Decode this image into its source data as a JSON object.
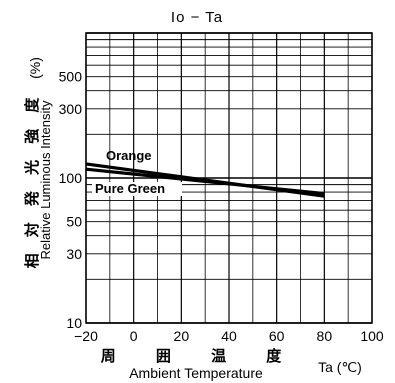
{
  "chart_data": {
    "type": "line",
    "title": "Io − Ta",
    "xlabel_jp": "周 囲 温 度",
    "xlabel": "Ambient Temperature",
    "xunit": "Ta (℃)",
    "ylabel_jp": "相 対 発 光 強 度",
    "ylabel": "Relative Luminous Intensity",
    "yunit": "(%)",
    "xlim": [
      -20,
      100
    ],
    "ylim": [
      10,
      1000
    ],
    "yscale": "log",
    "x_ticks": [
      "−20",
      "0",
      "20",
      "40",
      "60",
      "80",
      "100"
    ],
    "y_ticks": [
      "10",
      "30",
      "50",
      "100",
      "300",
      "500"
    ],
    "grid": true,
    "series": [
      {
        "name": "Orange",
        "x": [
          -20,
          80
        ],
        "y": [
          125,
          75
        ]
      },
      {
        "name": "Pure Green",
        "x": [
          -20,
          80
        ],
        "y": [
          115,
          78
        ]
      }
    ]
  }
}
